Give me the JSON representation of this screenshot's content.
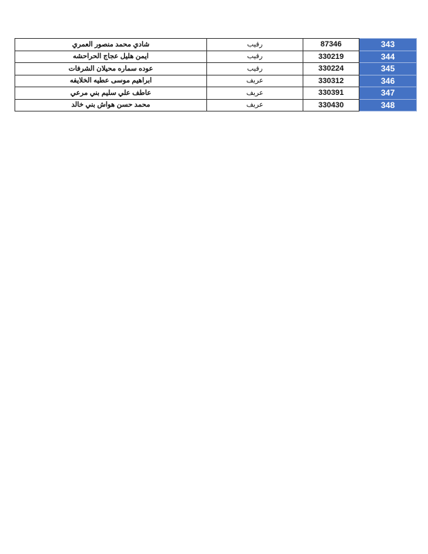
{
  "colors": {
    "index_bg": "#4472c4"
  },
  "rows": [
    {
      "name": "شادي محمد منصور العمري",
      "rank": "رقيب",
      "number": "87346",
      "index": "343"
    },
    {
      "name": "ايمن هليل عجاج الحراحشه",
      "rank": "رقيب",
      "number": "330219",
      "index": "344"
    },
    {
      "name": "عوده سماره محيلان الشرفات",
      "rank": "رقيب",
      "number": "330224",
      "index": "345"
    },
    {
      "name": "ابراهيم موسى عطيه الخلايفه",
      "rank": "عريف",
      "number": "330312",
      "index": "346"
    },
    {
      "name": "عاطف علي سليم بني مرعي",
      "rank": "عريف",
      "number": "330391",
      "index": "347"
    },
    {
      "name": "محمد حسن هواش بني خالد",
      "rank": "عريف",
      "number": "330430",
      "index": "348"
    }
  ]
}
